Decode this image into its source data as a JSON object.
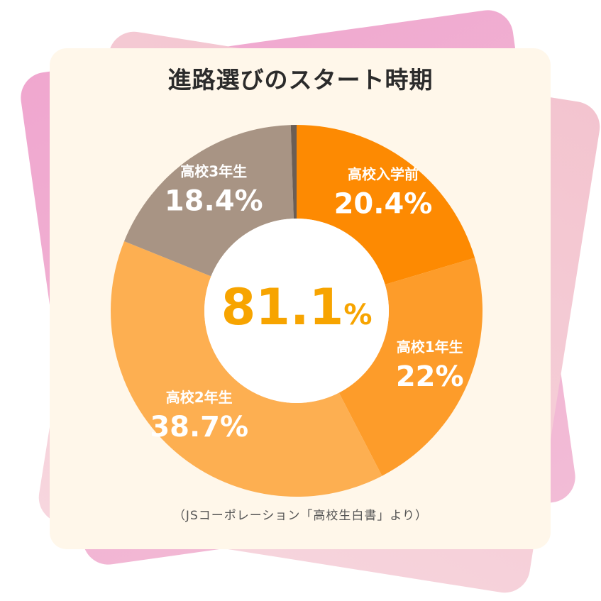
{
  "title": "進路選びのスタート時期",
  "center_value": "81.1",
  "center_unit": "%",
  "source": "（JSコーポレーション「高校生白書」より）",
  "colors": {
    "accent": "#f7a400",
    "slice1": "#fd8a02",
    "slice2": "#fd9c2a",
    "slice3": "#fdaf51",
    "slice4": "#a89484",
    "slice5": "#6b5e55"
  },
  "chart_data": {
    "type": "pie",
    "title": "進路選びのスタート時期",
    "slices": [
      {
        "label": "高校入学前",
        "value": 20.4,
        "display": "20.4%"
      },
      {
        "label": "高校1年生",
        "value": 22,
        "display": "22%"
      },
      {
        "label": "高校2年生",
        "value": 38.7,
        "display": "38.7%"
      },
      {
        "label": "高校3年生",
        "value": 18.4,
        "display": "18.4%"
      },
      {
        "label": "",
        "value": 0.5,
        "display": ""
      }
    ],
    "center_label": "81.1%"
  }
}
